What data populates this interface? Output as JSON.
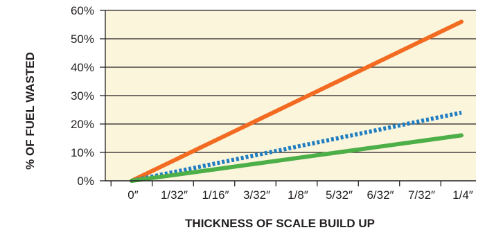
{
  "chart_data": {
    "type": "line",
    "xlabel": "THICKNESS OF SCALE BUILD UP",
    "ylabel": "% OF FUEL WASTED",
    "categories": [
      "0″",
      "1/32″",
      "1/16″",
      "3/32″",
      "1/8″",
      "5/32″",
      "6/32″",
      "7/32″",
      "1/4″"
    ],
    "y_ticks": [
      "0%",
      "10%",
      "20%",
      "30%",
      "40%",
      "50%",
      "60%"
    ],
    "ylim": [
      0,
      60
    ],
    "grid": "horizontal",
    "background_color": "#fbf5dc",
    "grid_color": "#231f20",
    "series": [
      {
        "color": "#f26b21",
        "style": "solid",
        "values": [
          0,
          7,
          14,
          21,
          28,
          35,
          42,
          49,
          56
        ]
      },
      {
        "color": "#1f7ec1",
        "style": "dotted",
        "values": [
          0,
          3,
          6,
          9,
          12,
          15,
          18,
          21,
          24
        ]
      },
      {
        "color": "#4daf48",
        "style": "solid",
        "values": [
          0,
          2,
          4,
          6,
          8,
          10,
          12,
          14,
          16
        ]
      }
    ]
  }
}
